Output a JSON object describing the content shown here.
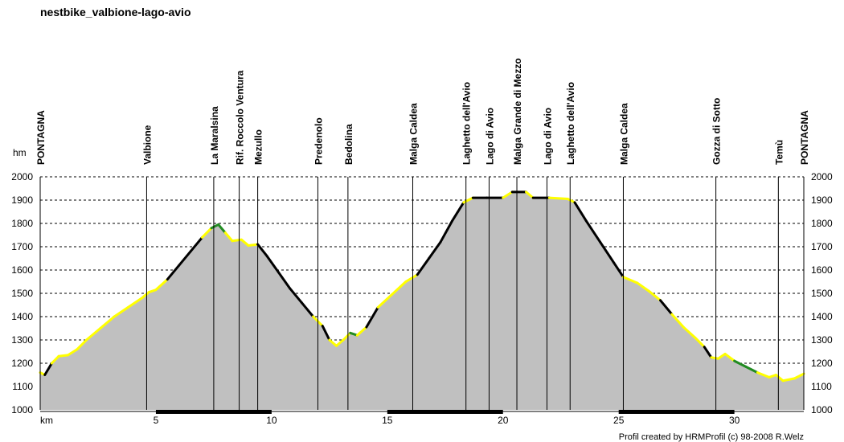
{
  "chart_data": {
    "type": "area",
    "title": "nestbike_valbione-lago-avio",
    "ylabel": "hm",
    "xlabel": "km",
    "footer": "Profil created by HRMProfil (c) 98-2008 R.Welz",
    "xlim": [
      0,
      33
    ],
    "ylim": [
      1000,
      2000
    ],
    "x_ticks": [
      5,
      10,
      15,
      20,
      25,
      30
    ],
    "y_ticks": [
      1000,
      1100,
      1200,
      1300,
      1400,
      1500,
      1600,
      1700,
      1800,
      1900,
      2000
    ],
    "grid": true,
    "colors": {
      "fill": "#c0c0c0",
      "uphill": "#ffff00",
      "downhill": "#000000",
      "flat": "#228b22",
      "axis": "#000000"
    },
    "profile": [
      {
        "x": 0.0,
        "y": 1160
      },
      {
        "x": 0.2,
        "y": 1150
      },
      {
        "x": 0.5,
        "y": 1200
      },
      {
        "x": 0.8,
        "y": 1230
      },
      {
        "x": 1.2,
        "y": 1235
      },
      {
        "x": 1.6,
        "y": 1260
      },
      {
        "x": 2.0,
        "y": 1300
      },
      {
        "x": 2.6,
        "y": 1350
      },
      {
        "x": 3.2,
        "y": 1400
      },
      {
        "x": 3.8,
        "y": 1440
      },
      {
        "x": 4.4,
        "y": 1480
      },
      {
        "x": 4.7,
        "y": 1505
      },
      {
        "x": 5.0,
        "y": 1515
      },
      {
        "x": 5.5,
        "y": 1560
      },
      {
        "x": 6.0,
        "y": 1620
      },
      {
        "x": 6.5,
        "y": 1680
      },
      {
        "x": 7.0,
        "y": 1740
      },
      {
        "x": 7.4,
        "y": 1780
      },
      {
        "x": 7.7,
        "y": 1795
      },
      {
        "x": 8.0,
        "y": 1760
      },
      {
        "x": 8.3,
        "y": 1725
      },
      {
        "x": 8.7,
        "y": 1730
      },
      {
        "x": 9.0,
        "y": 1705
      },
      {
        "x": 9.4,
        "y": 1710
      },
      {
        "x": 9.8,
        "y": 1660
      },
      {
        "x": 10.3,
        "y": 1590
      },
      {
        "x": 10.8,
        "y": 1520
      },
      {
        "x": 11.3,
        "y": 1460
      },
      {
        "x": 11.8,
        "y": 1400
      },
      {
        "x": 12.2,
        "y": 1360
      },
      {
        "x": 12.5,
        "y": 1300
      },
      {
        "x": 12.8,
        "y": 1275
      },
      {
        "x": 13.1,
        "y": 1300
      },
      {
        "x": 13.4,
        "y": 1330
      },
      {
        "x": 13.7,
        "y": 1320
      },
      {
        "x": 14.1,
        "y": 1355
      },
      {
        "x": 14.6,
        "y": 1440
      },
      {
        "x": 15.2,
        "y": 1495
      },
      {
        "x": 15.8,
        "y": 1550
      },
      {
        "x": 16.3,
        "y": 1580
      },
      {
        "x": 16.8,
        "y": 1650
      },
      {
        "x": 17.3,
        "y": 1720
      },
      {
        "x": 17.8,
        "y": 1810
      },
      {
        "x": 18.3,
        "y": 1890
      },
      {
        "x": 18.7,
        "y": 1910
      },
      {
        "x": 19.3,
        "y": 1910
      },
      {
        "x": 20.0,
        "y": 1910
      },
      {
        "x": 20.4,
        "y": 1935
      },
      {
        "x": 21.0,
        "y": 1935
      },
      {
        "x": 21.3,
        "y": 1910
      },
      {
        "x": 22.0,
        "y": 1910
      },
      {
        "x": 22.8,
        "y": 1905
      },
      {
        "x": 23.1,
        "y": 1890
      },
      {
        "x": 23.6,
        "y": 1810
      },
      {
        "x": 24.2,
        "y": 1720
      },
      {
        "x": 24.8,
        "y": 1630
      },
      {
        "x": 25.2,
        "y": 1570
      },
      {
        "x": 25.8,
        "y": 1545
      },
      {
        "x": 26.3,
        "y": 1510
      },
      {
        "x": 26.8,
        "y": 1470
      },
      {
        "x": 27.3,
        "y": 1410
      },
      {
        "x": 27.8,
        "y": 1355
      },
      {
        "x": 28.3,
        "y": 1310
      },
      {
        "x": 28.7,
        "y": 1270
      },
      {
        "x": 29.0,
        "y": 1225
      },
      {
        "x": 29.3,
        "y": 1220
      },
      {
        "x": 29.6,
        "y": 1240
      },
      {
        "x": 30.0,
        "y": 1210
      },
      {
        "x": 30.5,
        "y": 1185
      },
      {
        "x": 31.0,
        "y": 1160
      },
      {
        "x": 31.5,
        "y": 1140
      },
      {
        "x": 31.8,
        "y": 1150
      },
      {
        "x": 32.1,
        "y": 1125
      },
      {
        "x": 32.6,
        "y": 1135
      },
      {
        "x": 33.0,
        "y": 1155
      }
    ],
    "waypoints": [
      {
        "name": "PONTAGNA",
        "km": 0.0
      },
      {
        "name": "Valbione",
        "km": 4.6
      },
      {
        "name": "La Maralsina",
        "km": 7.5
      },
      {
        "name": "Rif. Roccolo Ventura",
        "km": 8.6
      },
      {
        "name": "Mezullo",
        "km": 9.4
      },
      {
        "name": "Predenolo",
        "km": 12.0
      },
      {
        "name": "Bedolina",
        "km": 13.3
      },
      {
        "name": "Malga Caldea",
        "km": 16.1
      },
      {
        "name": "Laghetto dell'Avio",
        "km": 18.4
      },
      {
        "name": "Lago di Avio",
        "km": 19.4
      },
      {
        "name": "Malga Grande di Mezzo",
        "km": 20.6
      },
      {
        "name": "Lago di Avio",
        "km": 21.9
      },
      {
        "name": "Laghetto dell'Avio",
        "km": 22.9
      },
      {
        "name": "Malga Caldea",
        "km": 25.2
      },
      {
        "name": "Gozza di Sotto",
        "km": 29.2
      },
      {
        "name": "Temù",
        "km": 31.9
      },
      {
        "name": "PONTAGNA",
        "km": 33.0
      }
    ]
  }
}
